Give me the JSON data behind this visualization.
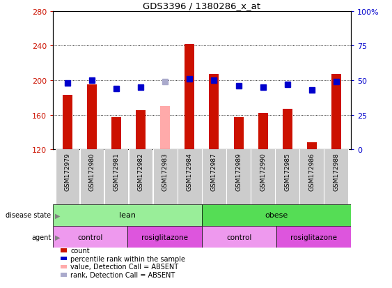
{
  "title": "GDS3396 / 1380286_x_at",
  "samples": [
    "GSM172979",
    "GSM172980",
    "GSM172981",
    "GSM172982",
    "GSM172983",
    "GSM172984",
    "GSM172987",
    "GSM172989",
    "GSM172990",
    "GSM172985",
    "GSM172986",
    "GSM172988"
  ],
  "bar_values": [
    183,
    195,
    157,
    165,
    null,
    242,
    207,
    157,
    162,
    167,
    128,
    207
  ],
  "bar_absent_value": [
    null,
    null,
    null,
    null,
    170,
    null,
    null,
    null,
    null,
    null,
    null,
    null
  ],
  "rank_values": [
    48,
    50,
    44,
    45,
    null,
    51,
    50,
    46,
    45,
    47,
    43,
    49
  ],
  "rank_absent_value": [
    null,
    null,
    null,
    null,
    49,
    null,
    null,
    null,
    null,
    null,
    null,
    null
  ],
  "ylim_left": [
    120,
    280
  ],
  "ylim_right": [
    0,
    100
  ],
  "yticks_left": [
    120,
    160,
    200,
    240,
    280
  ],
  "yticks_right": [
    0,
    25,
    50,
    75,
    100
  ],
  "ytick_labels_right": [
    "0",
    "25",
    "50",
    "75",
    "100%"
  ],
  "bar_color": "#cc1100",
  "bar_absent_color": "#ffaaaa",
  "rank_color": "#0000cc",
  "rank_absent_color": "#aaaacc",
  "grid_color": "#000000",
  "disease_state_groups": [
    {
      "label": "lean",
      "start": 0,
      "end": 6,
      "color": "#99ee99"
    },
    {
      "label": "obese",
      "start": 6,
      "end": 12,
      "color": "#55dd55"
    }
  ],
  "agent_groups": [
    {
      "label": "control",
      "start": 0,
      "end": 3,
      "color": "#ee99ee"
    },
    {
      "label": "rosiglitazone",
      "start": 3,
      "end": 6,
      "color": "#dd55dd"
    },
    {
      "label": "control",
      "start": 6,
      "end": 9,
      "color": "#ee99ee"
    },
    {
      "label": "rosiglitazone",
      "start": 9,
      "end": 12,
      "color": "#dd55dd"
    }
  ],
  "bar_width": 0.4,
  "rank_marker_size": 6,
  "tick_bg_color": "#cccccc",
  "left_label_color": "#cc1100",
  "right_label_color": "#0000cc"
}
